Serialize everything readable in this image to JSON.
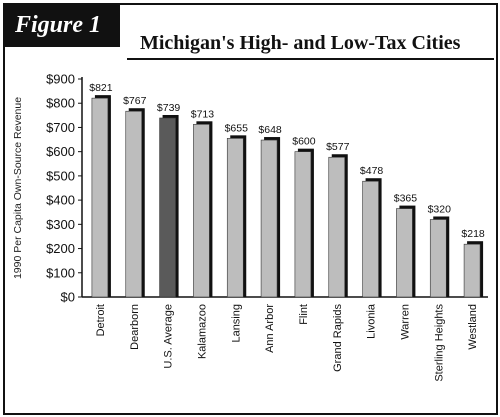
{
  "figure_label": "Figure 1",
  "chart_data": {
    "type": "bar",
    "title": "Michigan's High- and Low-Tax Cities",
    "xlabel": "",
    "ylabel": "1990 Per Capita Own-Source Revenue",
    "ylim": [
      0,
      900
    ],
    "yticks": [
      0,
      100,
      200,
      300,
      400,
      500,
      600,
      700,
      800,
      900
    ],
    "ytick_labels": [
      "$0",
      "$100",
      "$200",
      "$300",
      "$400",
      "$500",
      "$600",
      "$700",
      "$800",
      "$900"
    ],
    "grid": false,
    "categories": [
      "Detroit",
      "Dearborn",
      "U.S. Average",
      "Kalamazoo",
      "Lansing",
      "Ann Arbor",
      "Flint",
      "Grand Rapids",
      "Livonia",
      "Warren",
      "Sterling Heights",
      "Westland"
    ],
    "values": [
      821,
      767,
      739,
      713,
      655,
      648,
      600,
      577,
      478,
      365,
      320,
      218
    ],
    "data_labels": [
      "$821",
      "$767",
      "$739",
      "$713",
      "$655",
      "$648",
      "$600",
      "$577",
      "$478",
      "$365",
      "$320",
      "$218"
    ],
    "highlighted_category": "U.S. Average",
    "colors": {
      "bar": "#bdbdbd",
      "bar_highlight": "#5a5a5a",
      "bar_shadow": "#111111",
      "axis": "#111111",
      "frame": "#111111"
    }
  }
}
